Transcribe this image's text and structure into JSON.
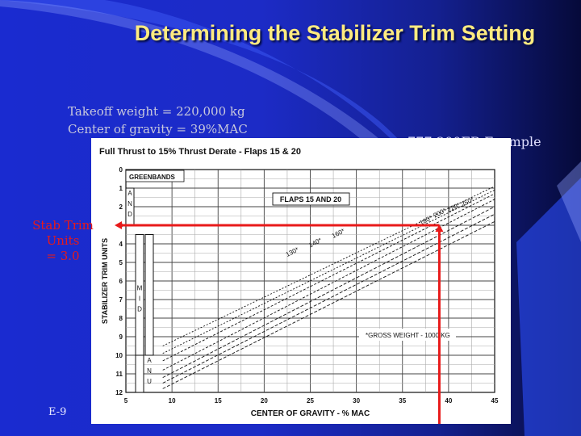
{
  "slide": {
    "title": "Determining the Stabilizer Trim Setting",
    "takeoff_weight": "Takeoff weight = 220,000 kg",
    "center_of_gravity": "Center of gravity = 39%MAC",
    "example_label": "777-200ER Example",
    "stab_trim_line1": "Stab Trim Units",
    "stab_trim_line2": "= 3.0",
    "footer": "E-9",
    "background_color": "#1a2bd0",
    "title_color": "#ffeb80",
    "highlight_color": "#e81a1a"
  },
  "chart_data": {
    "type": "line",
    "title": "Full Thrust to 15% Thrust Derate - Flaps 15 & 20",
    "xlabel": "CENTER OF GRAVITY - % MAC",
    "ylabel": "STABILIZER TRIM UNITS",
    "xlim": [
      5,
      45
    ],
    "ylim": [
      0,
      12
    ],
    "y_inverted": true,
    "x_ticks": [
      "5",
      "10",
      "15",
      "20",
      "25",
      "30",
      "35",
      "40",
      "45"
    ],
    "y_ticks": [
      "0",
      "1",
      "2",
      "3",
      "4",
      "5",
      "6",
      "7",
      "8",
      "9",
      "10",
      "11",
      "12"
    ],
    "grid": true,
    "flaps_label": "FLAPS 15 AND 20",
    "gross_weight_note": "*GROSS WEIGHT - 1000 KG",
    "greenbands_label": "GREENBANDS",
    "band_labels": {
      "and": "A N D",
      "mid": "M I D",
      "anu": "A N U"
    },
    "green_bands": [
      {
        "label": "A N D",
        "from": 1,
        "to": 3
      },
      {
        "label": "M I D",
        "from": 3.5,
        "to": 10
      },
      {
        "label": "A N U",
        "from": 10,
        "to": 12
      }
    ],
    "series": [
      {
        "name": "130*",
        "x": [
          9,
          45
        ],
        "y": [
          11.8,
          2.8
        ]
      },
      {
        "name": "140*",
        "x": [
          9,
          45
        ],
        "y": [
          11.5,
          2.4
        ]
      },
      {
        "name": "160*",
        "x": [
          9,
          45
        ],
        "y": [
          11.2,
          2.0
        ]
      },
      {
        "name": "180*",
        "x": [
          9,
          45
        ],
        "y": [
          10.8,
          1.6
        ]
      },
      {
        "name": "200*",
        "x": [
          9,
          45
        ],
        "y": [
          10.3,
          1.3
        ]
      },
      {
        "name": "220*",
        "x": [
          9,
          45
        ],
        "y": [
          9.9,
          1.1
        ]
      },
      {
        "name": "250*",
        "x": [
          9,
          45
        ],
        "y": [
          9.5,
          0.9
        ]
      }
    ],
    "series_label_points": [
      {
        "x": 22.5,
        "y": 4.7
      },
      {
        "x": 25.0,
        "y": 4.2
      },
      {
        "x": 27.5,
        "y": 3.7
      },
      {
        "x": 37.0,
        "y": 3.0
      },
      {
        "x": 38.5,
        "y": 2.6
      },
      {
        "x": 40.0,
        "y": 2.3
      },
      {
        "x": 41.5,
        "y": 2.0
      }
    ],
    "annotation": {
      "cg": 39,
      "stab_trim": 3.0
    }
  }
}
